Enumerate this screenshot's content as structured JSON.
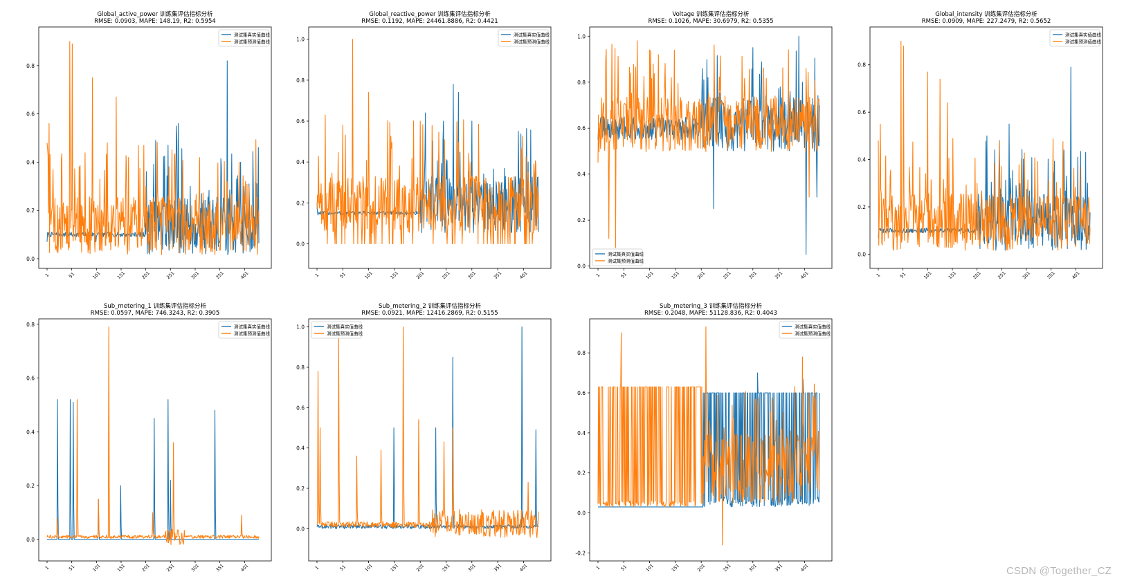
{
  "watermark": "CSDN @Together_CZ",
  "colors": {
    "actual": "#1f77b4",
    "predicted": "#ff7f0e",
    "axis": "#000000",
    "background": "#ffffff"
  },
  "chart_data": [
    {
      "type": "line",
      "panel": "global-active-power",
      "title": "Global_active_power 训练集评估指标分析",
      "subtitle": "RMSE: 0.0903, MAPE: 148.19, R2: 0.5954",
      "legend": [
        "测试集真实值曲线",
        "测试集预测值曲线"
      ],
      "legend_loc": "top-right",
      "xticks": [
        "1",
        "51",
        "101",
        "151",
        "201",
        "251",
        "301",
        "351",
        "401"
      ],
      "yticks": [
        "0.0",
        "0.2",
        "0.4",
        "0.6",
        "0.8"
      ],
      "xlim": [
        1,
        430
      ],
      "ylim": [
        -0.04,
        0.96
      ],
      "n": 430,
      "series": [
        {
          "name": "测试集真实值曲线",
          "start": 0.07,
          "x": [
            1,
            100,
            201,
            221,
            246,
            263,
            267,
            291,
            301,
            366,
            385,
            393,
            400,
            404,
            410
          ],
          "y": [
            0.08,
            0.07,
            0.1,
            0.49,
            0.47,
            0.55,
            0.56,
            0.3,
            0.05,
            0.82,
            0.33,
            0.4,
            0.3,
            0.12,
            0.31
          ]
        },
        {
          "name": "测试集预测值曲线",
          "start": 0.48,
          "x": [
            5,
            47,
            52,
            93,
            123,
            141,
            201,
            222,
            246,
            267,
            366,
            390,
            410
          ],
          "y": [
            0.56,
            0.9,
            0.89,
            0.75,
            0.48,
            0.67,
            0.3,
            0.25,
            0.26,
            0.25,
            0.32,
            0.4,
            0.3
          ]
        }
      ]
    },
    {
      "type": "line",
      "panel": "global-reactive-power",
      "title": "Global_reactive_power 训练集评估指标分析",
      "subtitle": "RMSE: 0.1192, MAPE: 24461.8886, R2: 0.4421",
      "legend": [
        "测试集真实值曲线",
        "测试集预测值曲线"
      ],
      "legend_loc": "top-right",
      "xticks": [
        "1",
        "51",
        "101",
        "151",
        "201",
        "251",
        "301",
        "351",
        "401"
      ],
      "yticks": [
        "0.0",
        "0.2",
        "0.4",
        "0.6",
        "0.8",
        "1.0"
      ],
      "xlim": [
        1,
        430
      ],
      "ylim": [
        -0.12,
        1.06
      ],
      "n": 430,
      "series": [
        {
          "name": "测试集真实值曲线",
          "start": 0.2,
          "x": [
            1,
            201,
            211,
            246,
            265,
            275,
            301,
            391,
            410
          ],
          "y": [
            0.2,
            0.25,
            0.64,
            0.6,
            0.78,
            0.74,
            0.6,
            0.55,
            0.4
          ]
        },
        {
          "name": "测试集预测值曲线",
          "start": 0.17,
          "x": [
            17,
            51,
            70,
            101,
            201,
            225,
            245,
            301,
            410
          ],
          "y": [
            0.63,
            0.58,
            1.0,
            0.74,
            0.6,
            0.3,
            0.33,
            0.33,
            0.35
          ]
        }
      ]
    },
    {
      "type": "line",
      "panel": "voltage",
      "title": "Voltage 训练集评估指标分析",
      "subtitle": "RMSE: 0.1026, MAPE: 30.6979, R2: 0.5355",
      "legend": [
        "测试集真实值曲线",
        "测试集预测值曲线"
      ],
      "legend_loc": "bottom-left",
      "xticks": [
        "1",
        "51",
        "101",
        "151",
        "201",
        "251",
        "301",
        "351",
        "401"
      ],
      "yticks": [
        "0.0",
        "0.2",
        "0.4",
        "0.6",
        "0.8",
        "1.0"
      ],
      "xlim": [
        1,
        430
      ],
      "ylim": [
        -0.01,
        1.04
      ],
      "n": 430,
      "series": [
        {
          "name": "测试集真实值曲线",
          "start": 0.55,
          "x": [
            1,
            201,
            225,
            290,
            390,
            397,
            404,
            420,
            425
          ],
          "y": [
            0.55,
            0.6,
            0.25,
            0.72,
            1.0,
            0.8,
            0.05,
            0.5,
            0.3
          ]
        },
        {
          "name": "测试集预测值曲线",
          "start": 0.45,
          "x": [
            22,
            35,
            77,
            101,
            201,
            225,
            301,
            395,
            410,
            425
          ],
          "y": [
            0.12,
            0.08,
            0.98,
            0.94,
            0.7,
            0.62,
            0.55,
            0.72,
            0.3,
            0.5
          ]
        }
      ]
    },
    {
      "type": "line",
      "panel": "global-intensity",
      "title": "Global_intensity 训练集评估指标分析",
      "subtitle": "RMSE: 0.0909, MAPE: 227.2479, R2: 0.5652",
      "legend": [
        "测试集真实值曲线",
        "测试集预测值曲线"
      ],
      "legend_loc": "top-right",
      "xticks": [
        "1",
        "51",
        "101",
        "151",
        "201",
        "251",
        "301",
        "351",
        "401"
      ],
      "yticks": [
        "0.0",
        "0.2",
        "0.4",
        "0.6",
        "0.8"
      ],
      "xlim": [
        1,
        430
      ],
      "ylim": [
        -0.06,
        0.96
      ],
      "n": 430,
      "series": [
        {
          "name": "测试集真实值曲线",
          "start": 0.07,
          "x": [
            1,
            201,
            221,
            246,
            266,
            301,
            391,
            405,
            425
          ],
          "y": [
            0.08,
            0.1,
            0.5,
            0.48,
            0.55,
            0.08,
            0.79,
            0.41,
            0.3
          ]
        },
        {
          "name": "测试集预测值曲线",
          "start": 0.48,
          "x": [
            5,
            47,
            52,
            101,
            126,
            141,
            201,
            275,
            301,
            410
          ],
          "y": [
            0.55,
            0.9,
            0.88,
            0.77,
            0.74,
            0.64,
            0.3,
            0.15,
            0.15,
            0.37
          ]
        }
      ]
    },
    {
      "type": "line",
      "panel": "sub-metering-1",
      "title": "Sub_metering_1 训练集评估指标分析",
      "subtitle": "RMSE: 0.0597, MAPE: 746.3243, R2: 0.3905",
      "legend": [
        "测试集真实值曲线",
        "测试集预测值曲线"
      ],
      "legend_loc": "top-right",
      "xticks": [
        "1",
        "51",
        "101",
        "151",
        "201",
        "251",
        "301",
        "351",
        "401"
      ],
      "yticks": [
        "0.0",
        "0.2",
        "0.4",
        "0.6",
        "0.8"
      ],
      "xlim": [
        1,
        430
      ],
      "ylim": [
        -0.08,
        0.82
      ],
      "n": 430,
      "spikes_actual": [
        [
          22,
          0.52
        ],
        [
          48,
          0.52
        ],
        [
          54,
          0.51
        ],
        [
          105,
          0.15
        ],
        [
          150,
          0.2
        ],
        [
          218,
          0.45
        ],
        [
          246,
          0.52
        ],
        [
          251,
          0.22
        ],
        [
          341,
          0.48
        ]
      ],
      "spikes_predicted": [
        [
          22,
          0.08
        ],
        [
          62,
          0.52
        ],
        [
          126,
          0.79
        ],
        [
          105,
          0.15
        ],
        [
          215,
          0.1
        ],
        [
          257,
          0.36
        ],
        [
          395,
          0.09
        ]
      ],
      "series": [
        {
          "name": "测试集真实值曲线",
          "baseline": 0.0
        },
        {
          "name": "测试集预测值曲线",
          "baseline": 0.01
        }
      ]
    },
    {
      "type": "line",
      "panel": "sub-metering-2",
      "title": "Sub_metering_2 训练集评估指标分析",
      "subtitle": "RMSE: 0.0921, MAPE: 12416.2869, R2: 0.5155",
      "legend": [
        "测试集真实值曲线",
        "测试集预测值曲线"
      ],
      "legend_loc": "top-left",
      "xticks": [
        "1",
        "51",
        "101",
        "151",
        "201",
        "251",
        "301",
        "351",
        "401"
      ],
      "yticks": [
        "0.0",
        "0.2",
        "0.4",
        "0.6",
        "0.8",
        "1.0"
      ],
      "xlim": [
        1,
        430
      ],
      "ylim": [
        -0.16,
        1.04
      ],
      "n": 430,
      "spikes_actual": [
        [
          150,
          0.5
        ],
        [
          231,
          0.5
        ],
        [
          264,
          0.85
        ],
        [
          398,
          1.0
        ],
        [
          425,
          0.49
        ]
      ],
      "spikes_predicted": [
        [
          3,
          0.78
        ],
        [
          7,
          0.5
        ],
        [
          43,
          0.96
        ],
        [
          78,
          0.36
        ],
        [
          125,
          0.39
        ],
        [
          168,
          1.0
        ],
        [
          198,
          0.54
        ],
        [
          247,
          0.43
        ],
        [
          264,
          0.5
        ],
        [
          410,
          0.23
        ]
      ],
      "series": [
        {
          "name": "测试集真实值曲线",
          "baseline": 0.0
        },
        {
          "name": "测试集预测值曲线",
          "baseline": 0.01
        }
      ]
    },
    {
      "type": "line",
      "panel": "sub-metering-3",
      "title": "Sub_metering_3 训练集评估指标分析",
      "subtitle": "RMSE: 0.2048, MAPE: 51128.836, R2: 0.4043",
      "legend": [
        "测试集真实值曲线",
        "测试集预测值曲线"
      ],
      "legend_loc": "top-right",
      "xticks": [
        "1",
        "51",
        "101",
        "151",
        "201",
        "251",
        "301",
        "351",
        "401"
      ],
      "yticks": [
        "-0.2",
        "0.0",
        "0.2",
        "0.4",
        "0.6",
        "0.8"
      ],
      "xlim": [
        1,
        430
      ],
      "ylim": [
        -0.24,
        0.97
      ],
      "n": 430,
      "spikes_actual": [
        [
          310,
          0.7
        ],
        [
          398,
          0.67
        ]
      ],
      "spikes_predicted": [
        [
          46,
          0.9
        ],
        [
          210,
          0.93
        ],
        [
          242,
          -0.16
        ],
        [
          397,
          0.78
        ]
      ],
      "series": [
        {
          "name": "测试集真实值曲线",
          "low": 0.03,
          "high": 0.6
        },
        {
          "name": "测试集预测值曲线",
          "low": 0.03,
          "high": 0.63
        }
      ]
    }
  ]
}
